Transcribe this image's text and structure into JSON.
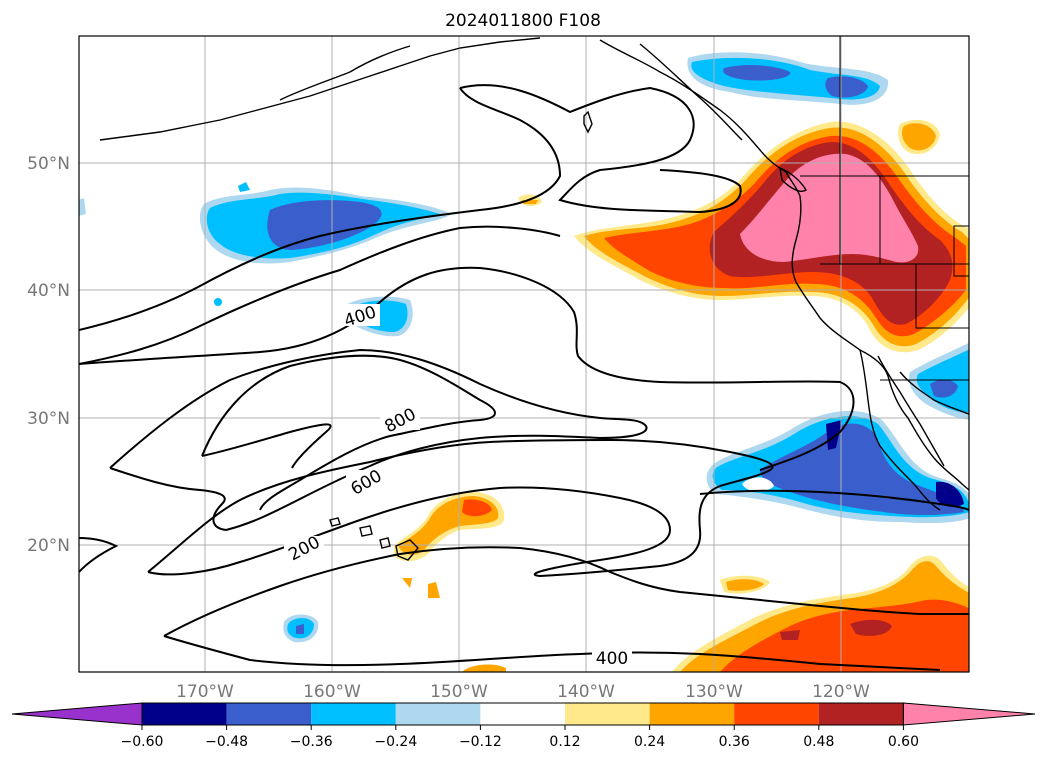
{
  "title": "2024011800 F108",
  "map": {
    "lat_labels": [
      "50°N",
      "40°N",
      "30°N",
      "20°N"
    ],
    "lon_labels": [
      "170°W",
      "160°W",
      "150°W",
      "140°W",
      "130°W",
      "120°W"
    ],
    "contour_labels": [
      "400",
      "800",
      "600",
      "200",
      "400"
    ]
  },
  "colorbar": {
    "ticks": [
      "−0.60",
      "−0.48",
      "−0.36",
      "−0.24",
      "−0.12",
      "0.12",
      "0.24",
      "0.36",
      "0.48",
      "0.60"
    ],
    "colors": [
      "#9932cc",
      "#00008b",
      "#3a5fcd",
      "#00bfff",
      "#add8f0",
      "#ffffff",
      "#ffe98a",
      "#ffa500",
      "#ff4500",
      "#b22222",
      "#ff82ab"
    ]
  }
}
